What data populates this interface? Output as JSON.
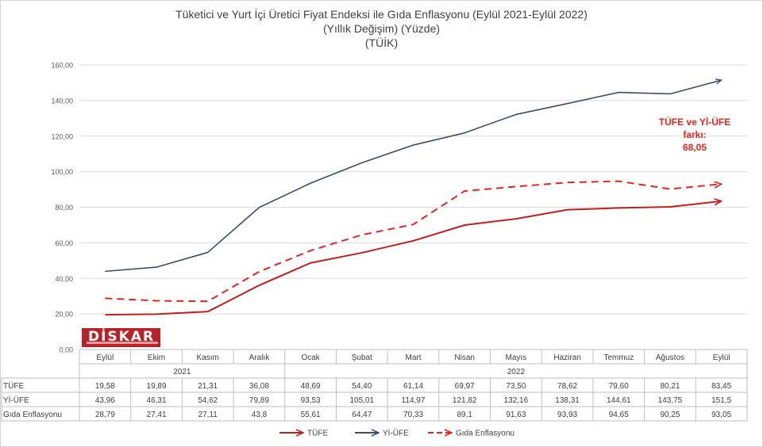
{
  "title_lines": [
    "Tüketici ve Yurt İçi Üretici Fiyat Endeksi ile Gıda Enflasyonu (Eylül 2021-Eylül 2022)",
    "(Yıllık Değişim) (Yüzde)",
    "(TÜİK)"
  ],
  "annotation_lines": [
    "TÜFE ve Yİ-ÜFE",
    "farkı:",
    "68,05"
  ],
  "logo_text": "DİSKAR",
  "colors": {
    "tufe": "#c0201e",
    "yiufe": "#3f4d6b",
    "gida": "#e8241c",
    "annotation": "#e8241c",
    "logo_bg": "#b8232a"
  },
  "chart_data": {
    "type": "line",
    "categories": [
      "Eylül",
      "Ekim",
      "Kasım",
      "Aralık",
      "Ocak",
      "Şubat",
      "Mart",
      "Nisan",
      "Mayıs",
      "Haziran",
      "Temmuz",
      "Ağustos",
      "Eylül"
    ],
    "year_groups": [
      {
        "label": "2021",
        "span": 4
      },
      {
        "label": "2022",
        "span": 9
      }
    ],
    "series": [
      {
        "name": "TÜFE",
        "style": "solid",
        "values": [
          19.58,
          19.89,
          21.31,
          36.08,
          48.69,
          54.4,
          61.14,
          69.97,
          73.5,
          78.62,
          79.6,
          80.21,
          83.45
        ],
        "labels": [
          "19,58",
          "19,89",
          "21,31",
          "36,08",
          "48,69",
          "54,40",
          "61,14",
          "69,97",
          "73,50",
          "78,62",
          "79,60",
          "80,21",
          "83,45"
        ]
      },
      {
        "name": "Yİ-ÜFE",
        "style": "solid",
        "values": [
          43.96,
          46.31,
          54.62,
          79.89,
          93.53,
          105.01,
          114.97,
          121.82,
          132.16,
          138.31,
          144.61,
          143.75,
          151.5
        ],
        "labels": [
          "43,96",
          "46,31",
          "54,62",
          "79,89",
          "93,53",
          "105,01",
          "114,97",
          "121,82",
          "132,16",
          "138,31",
          "144,61",
          "143,75",
          "151,5"
        ]
      },
      {
        "name": "Gıda Enflasyonu",
        "style": "dashed",
        "values": [
          28.79,
          27.41,
          27.11,
          43.8,
          55.61,
          64.47,
          70.33,
          89.1,
          91.63,
          93.93,
          94.65,
          90.25,
          93.05
        ],
        "labels": [
          "28,79",
          "27,41",
          "27,11",
          "43,8",
          "55,61",
          "64,47",
          "70,33",
          "89,1",
          "91,63",
          "93,93",
          "94,65",
          "90,25",
          "93,05"
        ]
      }
    ],
    "ylim": [
      0,
      160
    ],
    "yticks": [
      "0,00",
      "20,00",
      "40,00",
      "60,00",
      "80,00",
      "100,00",
      "120,00",
      "140,00",
      "160,00"
    ],
    "grid": true,
    "legend": "bottom"
  }
}
